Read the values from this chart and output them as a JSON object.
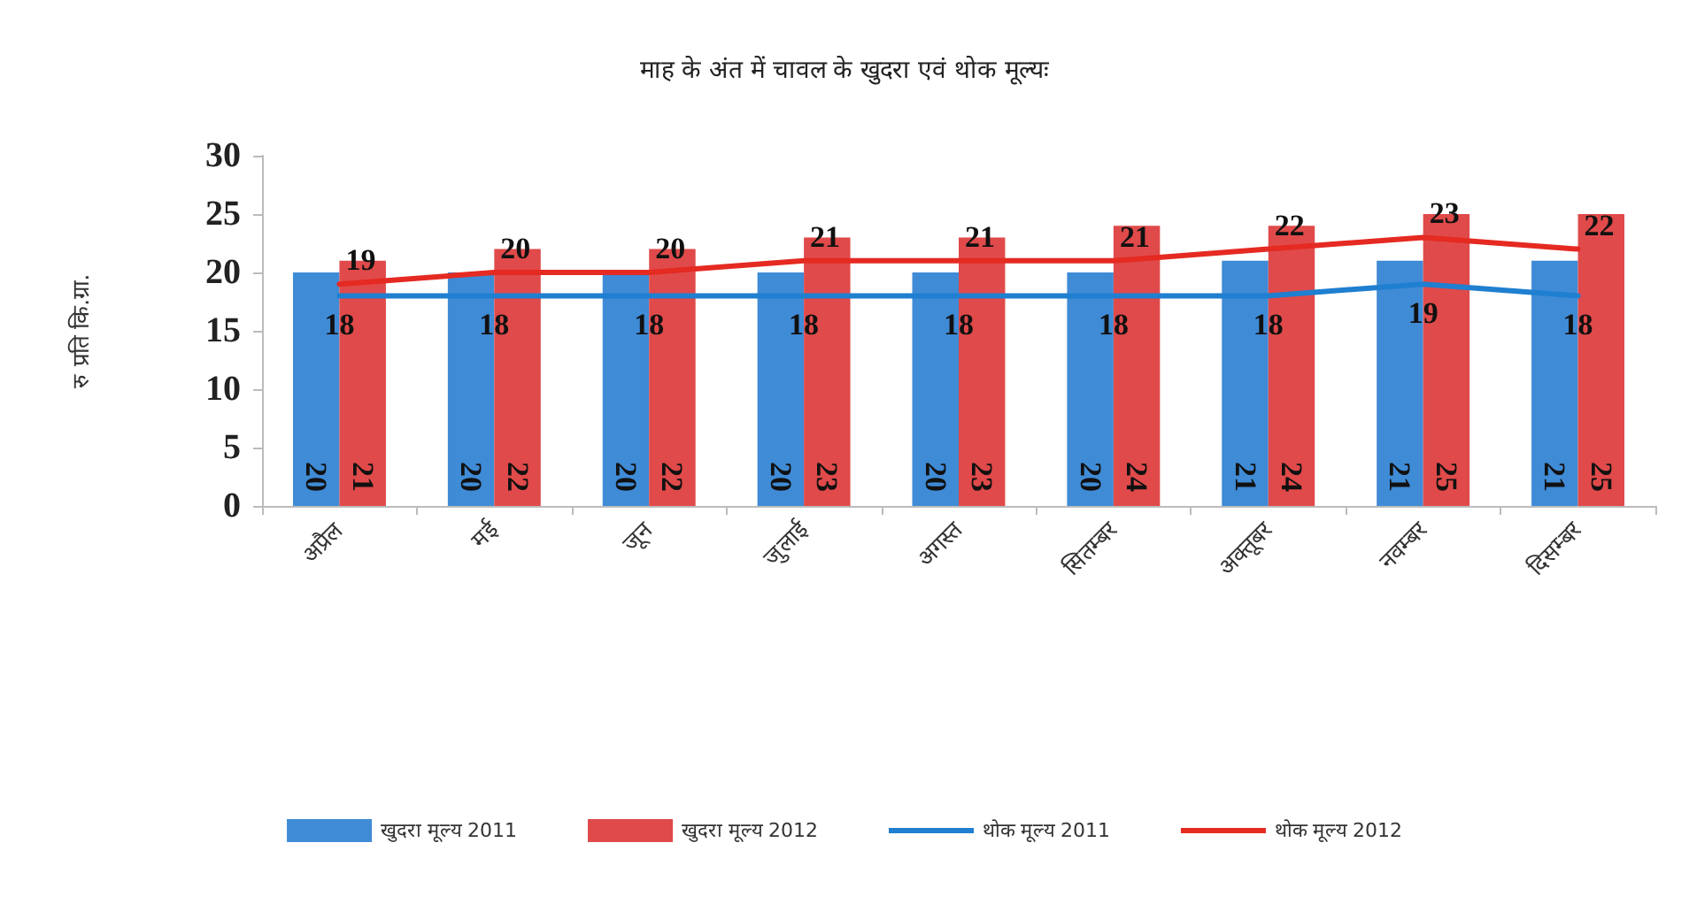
{
  "chart_data": {
    "type": "bar",
    "title": "माह के अंत में चावल के खुदरा एवं थोक मूल्यः",
    "ylabel": "रु प्रति कि.ग्रा.",
    "categories": [
      "अप्रैल",
      "मई",
      "जून",
      "जुलाई",
      "अगस्त",
      "सितम्बर",
      "अक्तूबर",
      "नवम्बर",
      "दिसम्बर"
    ],
    "series": [
      {
        "name": "खुदरा मूल्य 2011",
        "color": "#3f8bd6",
        "values": [
          20,
          20,
          20,
          20,
          20,
          20,
          21,
          21,
          21
        ]
      },
      {
        "name": "खुदरा मूल्य 2012",
        "color": "#e04a4a",
        "values": [
          21,
          22,
          22,
          23,
          23,
          24,
          24,
          25,
          25
        ]
      },
      {
        "name": "थोक मूल्य 2011",
        "type": "line",
        "color": "#1f7fd0",
        "values": [
          18,
          18,
          18,
          18,
          18,
          18,
          18,
          19,
          18
        ]
      },
      {
        "name": "थोक मूल्य 2012",
        "type": "line",
        "color": "#e52a22",
        "values": [
          19,
          20,
          20,
          21,
          21,
          21,
          22,
          23,
          22
        ]
      }
    ],
    "ylim": [
      0,
      30
    ],
    "yticks": [
      0,
      5,
      10,
      15,
      20,
      25,
      30
    ],
    "grid": false,
    "legend": "bottom",
    "marker": "none",
    "line_style": "solid",
    "data_labels": true
  }
}
